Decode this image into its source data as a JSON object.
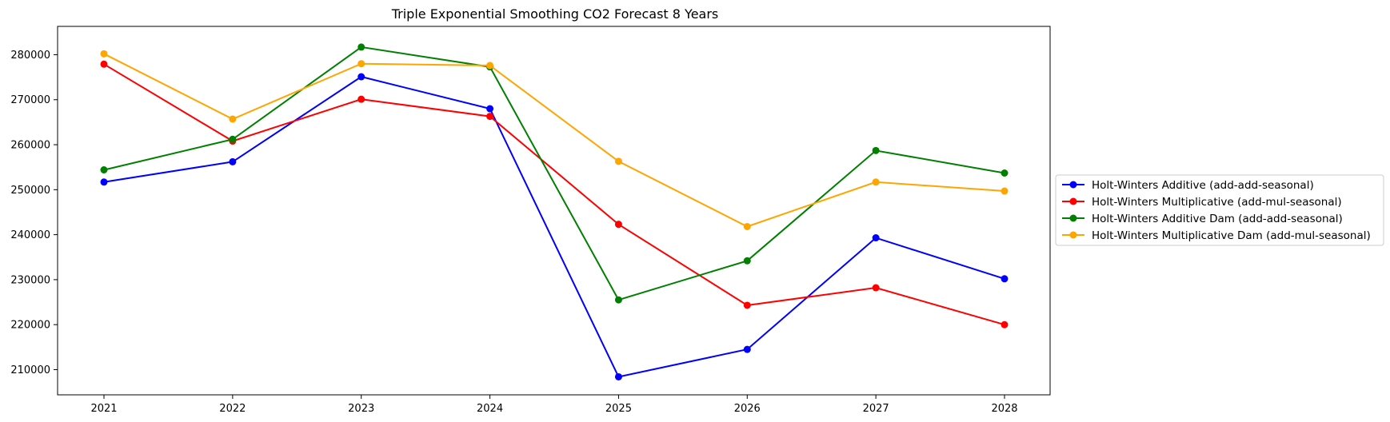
{
  "chart_data": {
    "type": "line",
    "title": "Triple Exponential Smoothing CO2 Forecast 8 Years",
    "xlabel": "",
    "ylabel": "",
    "categories": [
      "2021",
      "2022",
      "2023",
      "2024",
      "2025",
      "2026",
      "2027",
      "2028"
    ],
    "y_ticks": [
      210000,
      220000,
      230000,
      240000,
      250000,
      260000,
      270000,
      280000
    ],
    "y_tick_labels": [
      "210000",
      "220000",
      "230000",
      "240000",
      "250000",
      "260000",
      "270000",
      "280000"
    ],
    "ylim": [
      204400,
      286300
    ],
    "grid": false,
    "legend_position": "center-right-outside",
    "series": [
      {
        "name": "Holt-Winters Additive (add-add-seasonal)",
        "color": "#0000ff",
        "marker": "circle",
        "values": [
          251700,
          256200,
          275100,
          268000,
          208400,
          214500,
          239300,
          230200
        ]
      },
      {
        "name": "Holt-Winters Multiplicative (add-mul-seasonal)",
        "color": "#ff0000",
        "marker": "circle",
        "values": [
          277900,
          260800,
          270100,
          266300,
          242300,
          224300,
          228200,
          220000
        ]
      },
      {
        "name": "Holt-Winters Additive Dam (add-add-seasonal)",
        "color": "#008000",
        "marker": "circle",
        "values": [
          254400,
          261200,
          281700,
          277300,
          225500,
          234200,
          258700,
          253700
        ]
      },
      {
        "name": "Holt-Winters Multiplicative Dam (add-mul-seasonal)",
        "color": "#ffa500",
        "marker": "circle",
        "values": [
          280200,
          265700,
          278000,
          277600,
          256300,
          241800,
          251700,
          249700
        ]
      }
    ]
  }
}
